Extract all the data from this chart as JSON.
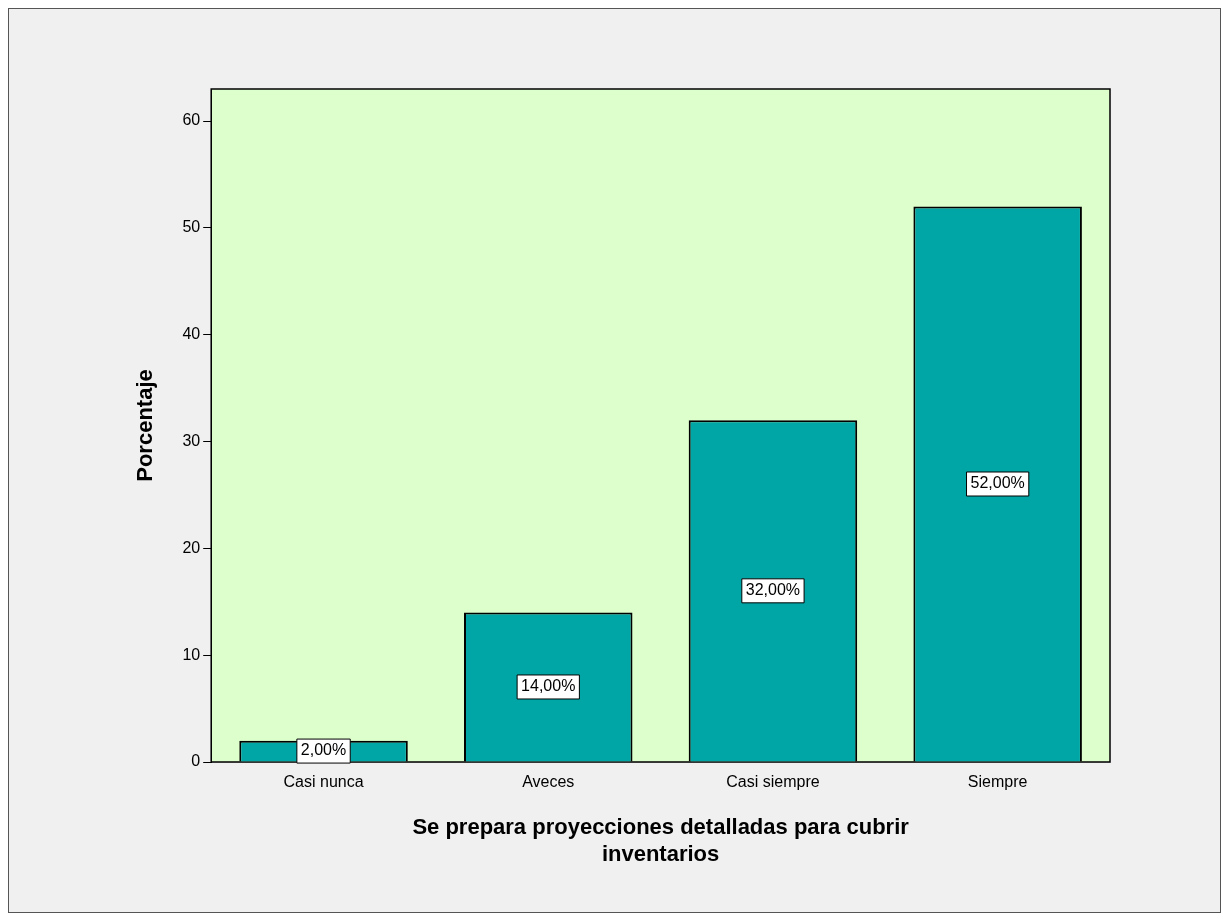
{
  "chart_data": {
    "type": "bar",
    "xlabel": "Se prepara proyecciones detalladas para cubrir\ninventarios",
    "ylabel": "Porcentaje",
    "categories": [
      "Casi nunca",
      "Aveces",
      "Casi siempre",
      "Siempre"
    ],
    "values": [
      2,
      14,
      32,
      52
    ],
    "color": "#00a6a6",
    "value_labels": [
      "2,00%",
      "14,00%",
      "32,00%",
      "52,00%"
    ],
    "ylim": [
      0,
      63
    ],
    "yticks": [
      0,
      10,
      20,
      30,
      40,
      50,
      60
    ],
    "grid": false,
    "legend": false
  }
}
